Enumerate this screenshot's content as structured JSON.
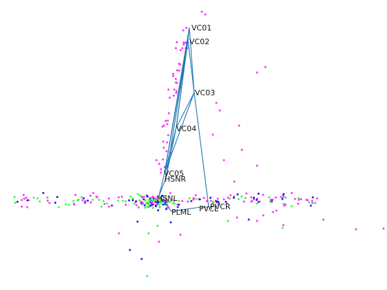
{
  "colors": {
    "edge": "#1f77b4",
    "points_magenta": "#ff33ff",
    "points_green": "#33ff33",
    "points_blue": "#2222dd",
    "label": "#111111",
    "background": "#ffffff"
  },
  "nodes": [
    {
      "id": "VC01",
      "label": "VC01"
    },
    {
      "id": "VC02",
      "label": "VC02"
    },
    {
      "id": "VC03",
      "label": "VC03"
    },
    {
      "id": "VC04",
      "label": "VC04"
    },
    {
      "id": "VC05",
      "label": "VC05"
    },
    {
      "id": "HSNR",
      "label": "HSNR"
    },
    {
      "id": "HSNL",
      "label": "HSNL"
    },
    {
      "id": "PLML",
      "label": "PLML"
    },
    {
      "id": "PVCL",
      "label": "PVCL"
    },
    {
      "id": "PVCR",
      "label": "PVCR"
    }
  ],
  "edges": [
    [
      "VC01",
      "VC02"
    ],
    [
      "VC01",
      "VC03"
    ],
    [
      "VC01",
      "VC04"
    ],
    [
      "VC01",
      "VC05"
    ],
    [
      "VC02",
      "VC03"
    ],
    [
      "VC02",
      "VC04"
    ],
    [
      "VC02",
      "VC05"
    ],
    [
      "VC02",
      "HSNR"
    ],
    [
      "VC03",
      "VC04"
    ],
    [
      "VC03",
      "VC05"
    ],
    [
      "VC03",
      "PVCR"
    ],
    [
      "VC04",
      "VC05"
    ],
    [
      "VC04",
      "HSNR"
    ],
    [
      "VC05",
      "HSNL"
    ],
    [
      "HSNR",
      "HSNL"
    ],
    [
      "HSNL",
      "PLML"
    ],
    [
      "PLML",
      "PVCL"
    ],
    [
      "PVCL",
      "PVCR"
    ]
  ]
}
